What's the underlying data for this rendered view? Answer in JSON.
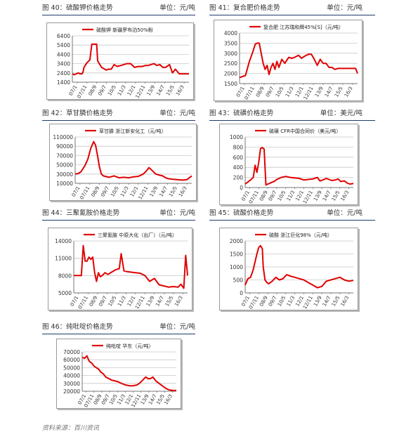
{
  "headers": [
    {
      "title": "图 40：硫酸钾价格走势",
      "unit": "单位：元/吨"
    },
    {
      "title": "图 41：复合肥价格走势",
      "unit": "单位：元/吨"
    },
    {
      "title": "图 42：草甘膦价格走势",
      "unit": "单位：元/吨"
    },
    {
      "title": "图 43：硫磺价格走势",
      "unit": "单位：美元/吨"
    },
    {
      "title": "图 44：三聚氰胺价格走势",
      "unit": "单位：元/吨"
    },
    {
      "title": "图 45：硫酸价格走势",
      "unit": "单位：元/吨"
    },
    {
      "title": "图 46：纯吡啶价格走势",
      "unit": "单位：元/吨"
    }
  ],
  "source": "资料来源：百川资讯",
  "colors": {
    "line": "#e00000",
    "rule": "#1f3a6b",
    "grid": "#c8c8c8"
  },
  "chart_data": [
    {
      "type": "line",
      "legend": "硫酸钾 新疆罗布泊50%粉",
      "ylim": [
        1400,
        6400
      ],
      "yticks": [
        1400,
        2400,
        3400,
        4400,
        5400,
        6400
      ],
      "xticks": [
        "07/1",
        "07/11",
        "08/9",
        "09/7",
        "10/5",
        "11/3",
        "12/1",
        "12/11",
        "13/9",
        "14/7",
        "15/5",
        "16/3"
      ],
      "x": [
        0,
        0.2,
        0.4,
        0.6,
        0.8,
        1.0,
        1.1,
        1.2,
        1.5,
        1.8,
        2.0,
        2.1,
        2.2,
        2.3,
        2.5,
        2.6,
        3.0,
        3.5,
        3.7,
        4.0,
        4.3,
        4.6,
        5.0,
        5.3,
        5.6,
        6.0,
        6.4,
        6.8,
        7.2,
        7.5,
        7.8,
        8.1,
        8.4,
        8.7,
        9.0,
        9.3,
        9.6,
        10.0,
        10.3,
        10.6,
        11.0,
        11.5,
        12.0
      ],
      "y": [
        2300,
        2200,
        2300,
        2400,
        2300,
        2300,
        2500,
        3000,
        3500,
        3800,
        5500,
        5500,
        5500,
        5500,
        5500,
        3700,
        3000,
        2700,
        2800,
        2800,
        3300,
        3100,
        3200,
        3300,
        3400,
        3400,
        3000,
        3100,
        3100,
        3200,
        3200,
        3300,
        3400,
        3200,
        3300,
        3000,
        3000,
        3300,
        2400,
        2800,
        2300,
        2300,
        2300
      ]
    },
    {
      "type": "line",
      "legend": "复合肥 江苏瑞和牌45%[S]（元/吨）",
      "ylim": [
        1500,
        4000
      ],
      "yticks": [
        1500,
        2000,
        2500,
        3000,
        3500,
        4000
      ],
      "xticks": [
        "07/1",
        "07/11",
        "08/9",
        "09/7",
        "10/5",
        "11/3",
        "12/1",
        "12/11",
        "13/9",
        "14/7",
        "15/5",
        "16/3"
      ],
      "x": [
        0,
        0.3,
        0.6,
        1.0,
        1.3,
        1.6,
        1.8,
        2.0,
        2.2,
        2.4,
        2.6,
        2.8,
        3.0,
        3.2,
        3.4,
        3.6,
        3.8,
        4.0,
        4.3,
        4.6,
        5.0,
        5.3,
        5.6,
        6.0,
        6.3,
        6.6,
        7.0,
        7.3,
        7.6,
        7.9,
        8.2,
        8.5,
        8.8,
        9.1,
        9.4,
        9.7,
        10.0,
        10.5,
        11.0,
        11.5,
        11.8,
        12.0
      ],
      "y": [
        1800,
        1850,
        1900,
        2600,
        3000,
        3450,
        3500,
        3500,
        3000,
        2500,
        2200,
        2400,
        1950,
        2300,
        2500,
        2200,
        2600,
        2300,
        2700,
        2500,
        2800,
        2750,
        2800,
        2900,
        2750,
        2850,
        2950,
        2950,
        2700,
        2400,
        2700,
        2500,
        2500,
        2300,
        2300,
        2200,
        2250,
        2250,
        2250,
        2250,
        2250,
        2000
      ]
    },
    {
      "type": "line",
      "legend": "草甘膦 浙江新安化工（元/吨）",
      "ylim": [
        10000,
        110000
      ],
      "yticks": [
        10000,
        30000,
        50000,
        70000,
        90000,
        110000
      ],
      "xticks": [
        "07/1",
        "07/11",
        "08/9",
        "09/7",
        "10/5",
        "11/3",
        "12/1",
        "12/11",
        "13/9",
        "14/7",
        "15/5",
        "16/3"
      ],
      "x": [
        0,
        0.3,
        0.6,
        1.0,
        1.3,
        1.6,
        1.9,
        2.1,
        2.3,
        2.5,
        2.7,
        2.9,
        3.1,
        3.5,
        4.0,
        4.5,
        5.0,
        5.5,
        6.0,
        6.5,
        7.0,
        7.3,
        7.6,
        8.0,
        8.3,
        8.6,
        9.0,
        9.3,
        9.6,
        10.0,
        10.5,
        11.0,
        11.5,
        12.0
      ],
      "y": [
        30000,
        31000,
        35000,
        48000,
        62000,
        85000,
        100000,
        92000,
        70000,
        45000,
        30000,
        26000,
        25000,
        23000,
        26000,
        22000,
        23000,
        22000,
        24000,
        25000,
        30000,
        36000,
        44000,
        36000,
        30000,
        28000,
        26000,
        22000,
        20000,
        19000,
        18000,
        17000,
        18000,
        26000
      ]
    },
    {
      "type": "line",
      "legend": "硫磺 CFR中国合同价（美元/吨）",
      "ylim": [
        0,
        1000
      ],
      "yticks": [
        0,
        200,
        400,
        600,
        800,
        1000
      ],
      "xticks": [
        "07/1",
        "07/11",
        "08/9",
        "09/7",
        "10/5",
        "11/3",
        "12/1",
        "12/11",
        "13/9",
        "14/7",
        "15/5",
        "16/3"
      ],
      "x": [
        0,
        0.3,
        0.6,
        0.9,
        1.1,
        1.3,
        1.5,
        1.7,
        1.9,
        2.1,
        2.3,
        2.5,
        2.7,
        2.9,
        3.2,
        3.5,
        4.0,
        4.5,
        5.0,
        5.5,
        6.0,
        6.5,
        7.0,
        7.5,
        8.0,
        8.3,
        8.6,
        9.0,
        9.3,
        9.6,
        10.0,
        10.3,
        10.6,
        11.0,
        11.3,
        11.6,
        12.0
      ],
      "y": [
        70,
        110,
        150,
        200,
        440,
        300,
        500,
        770,
        790,
        760,
        50,
        70,
        80,
        100,
        120,
        160,
        200,
        220,
        200,
        190,
        180,
        150,
        160,
        170,
        200,
        130,
        150,
        180,
        160,
        140,
        150,
        170,
        120,
        130,
        90,
        70,
        80
      ]
    },
    {
      "type": "line",
      "legend": "三聚氰胺 中原大化（出厂）（元/吨）",
      "ylim": [
        5000,
        14000
      ],
      "yticks": [
        5000,
        8000,
        11000,
        14000
      ],
      "xticks": [
        "07/1",
        "07/11",
        "08/9",
        "09/7",
        "10/5",
        "11/3",
        "12/1",
        "12/11",
        "13/9",
        "14/7",
        "15/5",
        "16/3"
      ],
      "x": [
        0,
        0.4,
        0.8,
        1.0,
        1.2,
        1.4,
        1.6,
        1.8,
        2.0,
        2.2,
        2.4,
        2.6,
        2.8,
        3.0,
        3.3,
        3.6,
        4.0,
        4.4,
        4.8,
        5.0,
        5.3,
        5.6,
        6.0,
        6.5,
        7.0,
        7.5,
        8.0,
        8.5,
        9.0,
        9.5,
        10.0,
        10.5,
        11.0,
        11.3,
        11.6,
        11.8,
        12.0
      ],
      "y": [
        8000,
        8000,
        8000,
        13200,
        10500,
        10500,
        11200,
        10800,
        11200,
        8500,
        7000,
        8500,
        7800,
        8000,
        8500,
        8200,
        8600,
        9000,
        9200,
        11800,
        8800,
        8700,
        8600,
        8500,
        8400,
        8000,
        7000,
        7500,
        6400,
        6200,
        6000,
        6100,
        6000,
        6500,
        5800,
        11500,
        8000
      ]
    },
    {
      "type": "line",
      "legend": "硫酸 浙江巨化98%（元/吨）",
      "ylim": [
        0,
        2000
      ],
      "yticks": [
        0,
        500,
        1000,
        1500,
        2000
      ],
      "xticks": [
        "07/1",
        "07/11",
        "08/9",
        "09/7",
        "10/5",
        "11/3",
        "12/1",
        "12/11",
        "13/9",
        "14/7",
        "15/5",
        "16/3"
      ],
      "x": [
        0,
        0.3,
        0.6,
        0.9,
        1.1,
        1.3,
        1.5,
        1.7,
        1.9,
        2.0,
        2.2,
        2.4,
        2.6,
        2.8,
        3.0,
        3.4,
        3.8,
        4.2,
        4.6,
        5.0,
        5.5,
        6.0,
        6.5,
        7.0,
        7.5,
        8.0,
        8.5,
        9.0,
        9.5,
        10.0,
        10.5,
        11.0,
        11.5,
        12.0
      ],
      "y": [
        300,
        550,
        600,
        900,
        1200,
        1500,
        1750,
        1820,
        1700,
        1000,
        500,
        400,
        350,
        400,
        450,
        600,
        500,
        550,
        700,
        650,
        600,
        550,
        500,
        400,
        300,
        200,
        250,
        450,
        500,
        550,
        600,
        500,
        450,
        480
      ]
    },
    {
      "type": "line",
      "legend": "纯吡啶 华东（元/吨）",
      "ylim": [
        20000,
        70000
      ],
      "yticks": [
        20000,
        30000,
        40000,
        50000,
        60000,
        70000
      ],
      "xticks": [
        "07/1",
        "07/11",
        "08/9",
        "09/7",
        "10/5",
        "11/3",
        "12/1",
        "12/11",
        "13/9",
        "14/7",
        "15/5",
        "16/3"
      ],
      "x": [
        0,
        0.3,
        0.6,
        0.9,
        1.2,
        1.5,
        1.8,
        2.1,
        2.4,
        2.7,
        3.0,
        3.4,
        3.8,
        4.2,
        4.6,
        5.0,
        5.5,
        6.0,
        6.5,
        7.0,
        7.4,
        7.8,
        8.1,
        8.4,
        8.7,
        9.0,
        9.4,
        9.8,
        10.2,
        10.6,
        11.0,
        11.5,
        12.0
      ],
      "y": [
        63000,
        62000,
        65000,
        58000,
        56000,
        52000,
        50000,
        48000,
        44000,
        42000,
        38000,
        36000,
        34000,
        33000,
        32000,
        30000,
        28000,
        27000,
        27000,
        28000,
        31000,
        35000,
        38000,
        36000,
        36000,
        38000,
        33000,
        30000,
        27000,
        24000,
        22000,
        21000,
        21000
      ]
    }
  ]
}
